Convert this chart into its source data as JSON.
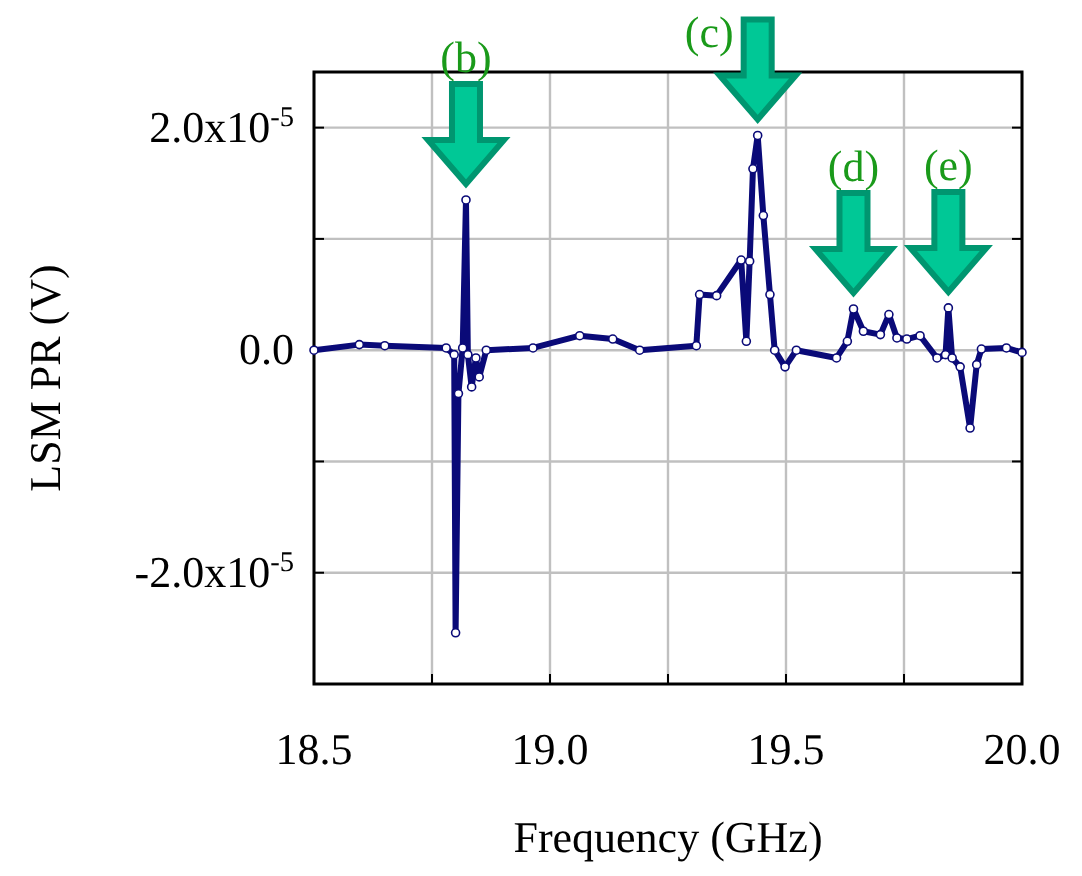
{
  "chart_data": {
    "type": "line",
    "xlabel": "Frequency (GHz)",
    "ylabel": "LSM PR (V)",
    "xlim": [
      18.5,
      20.0
    ],
    "ylim": [
      -3e-05,
      2.5e-05
    ],
    "xticks": [
      {
        "value": 18.5,
        "label": "18.5"
      },
      {
        "value": 18.75,
        "label": null
      },
      {
        "value": 19.0,
        "label": "19.0"
      },
      {
        "value": 19.25,
        "label": null
      },
      {
        "value": 19.5,
        "label": "19.5"
      },
      {
        "value": 19.75,
        "label": null
      },
      {
        "value": 20.0,
        "label": "20.0"
      }
    ],
    "yticks": [
      {
        "value": -2e-05,
        "label": "-2.0x10$^{-5}$"
      },
      {
        "value": -1e-05,
        "label": null
      },
      {
        "value": 0,
        "label": "0.0"
      },
      {
        "value": 1e-05,
        "label": null
      },
      {
        "value": 2e-05,
        "label": "2.0x10$^{-5}$"
      }
    ],
    "grid": true,
    "marker": "circle",
    "line_style": "solid",
    "series": [
      {
        "color": "#0a0a78",
        "x": [
          18.5,
          18.596,
          18.65,
          18.78,
          18.797,
          18.8,
          18.806,
          18.815,
          18.822,
          18.826,
          18.834,
          18.843,
          18.85,
          18.865,
          18.964,
          19.063,
          19.133,
          19.19,
          19.31,
          19.317,
          19.353,
          19.405,
          19.416,
          19.423,
          19.43,
          19.44,
          19.452,
          19.466,
          19.476,
          19.498,
          19.522,
          19.607,
          19.63,
          19.643,
          19.664,
          19.7,
          19.718,
          19.735,
          19.756,
          19.784,
          19.82,
          19.838,
          19.844,
          19.852,
          19.869,
          19.89,
          19.904,
          19.914,
          19.967,
          20.0
        ],
        "values": [
          0,
          5e-07,
          4e-07,
          2e-07,
          -4e-07,
          -2.54e-05,
          -3.9e-06,
          2e-07,
          1.35e-05,
          -4e-07,
          -3.3e-06,
          -7e-07,
          -2.4e-06,
          0,
          2e-07,
          1.3e-06,
          1e-06,
          0,
          4e-07,
          5e-06,
          4.9e-06,
          8.1e-06,
          8e-07,
          8e-06,
          1.63e-05,
          1.93e-05,
          1.21e-05,
          5e-06,
          0,
          -1.5e-06,
          0,
          -7e-07,
          8e-07,
          3.7e-06,
          1.7e-06,
          1.4e-06,
          3.2e-06,
          1.1e-06,
          1e-06,
          1.3e-06,
          -7e-07,
          -4e-07,
          3.8e-06,
          -7e-07,
          -1.5e-06,
          -7e-06,
          -1.3e-06,
          1e-07,
          2e-07,
          -2e-07
        ]
      }
    ],
    "annotations": [
      {
        "text": "(b)",
        "x": 18.822,
        "y": 1.35e-05
      },
      {
        "text": "(c)",
        "x": 19.44,
        "y": 1.93e-05
      },
      {
        "text": "(d)",
        "x": 19.643,
        "y": 3.7e-06
      },
      {
        "text": "(e)",
        "x": 19.844,
        "y": 3.8e-06
      }
    ]
  }
}
